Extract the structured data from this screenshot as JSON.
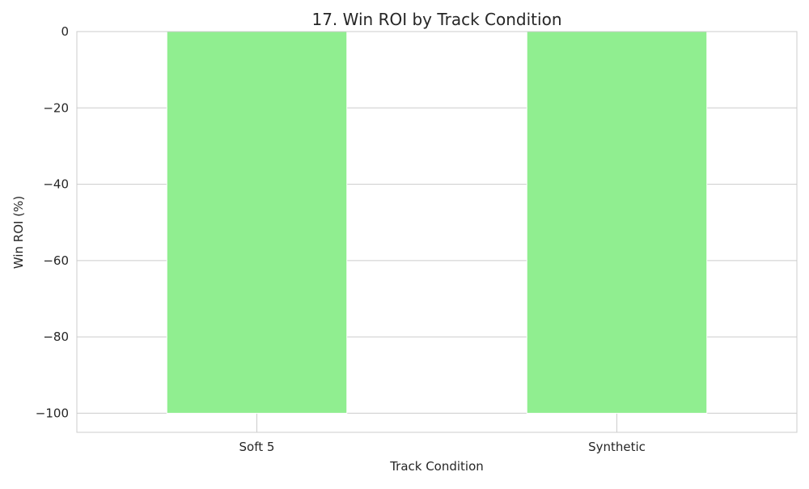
{
  "chart_data": {
    "type": "bar",
    "title": "17. Win ROI by Track Condition",
    "xlabel": "Track Condition",
    "ylabel": "Win ROI (%)",
    "categories": [
      "Soft 5",
      "Synthetic"
    ],
    "values": [
      -100,
      -100
    ],
    "ylim": [
      -105,
      0
    ],
    "yticks": [
      0,
      -20,
      -40,
      -60,
      -80,
      -100
    ],
    "ytick_labels": [
      "0",
      "−20",
      "−40",
      "−60",
      "−80",
      "−100"
    ],
    "grid": true,
    "bar_color": "#90ee90",
    "grid_color": "#cccccc",
    "text_color": "#262626"
  }
}
